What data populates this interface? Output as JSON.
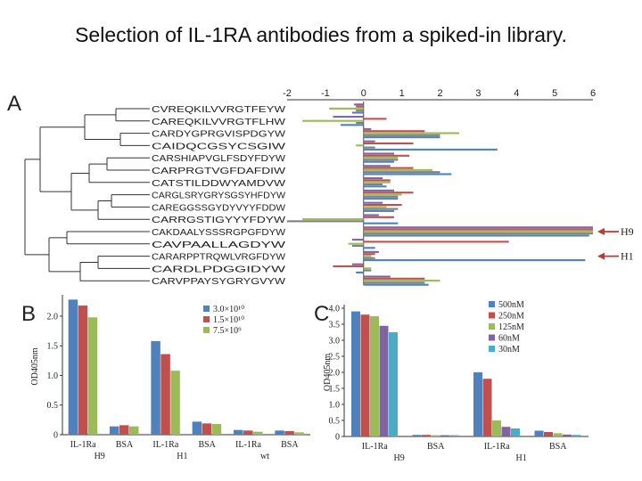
{
  "page_title": "Selection of IL-1RA antibodies from a spiked-in library.",
  "colors": {
    "blue": "#4f81bd",
    "red": "#c0504d",
    "green": "#9bbb59",
    "purple": "#8064a2",
    "teal": "#4bacc6",
    "grey": "#7f7f7f"
  },
  "chart_data": [
    {
      "panel": "A",
      "type": "bar",
      "orientation": "horizontal",
      "xlim": [
        -2,
        6
      ],
      "x_ticks": [
        "-2",
        "-1",
        "0",
        "1",
        "2",
        "3",
        "4",
        "5",
        "6"
      ],
      "sequences": [
        "CVREQKILVVRGTFEYW",
        "CAREQKILVVRGTFLHW",
        "CARDYGPRGVISPDGYW",
        "CAIDQCGSYCSGIW",
        "CARSHIAPVGLFSDYFDYW",
        "CARPRGTVGFDAFDIW",
        "CATSTILDDWYAMDVW",
        "CARGLSRYGRYSGSYHFDYW",
        "CAREGGSSGYDYVYYFDDW",
        "CARRGSTIGYYYFDYW",
        "CAKDAALYSSSRGPGFDYW",
        "CAVPAALLAGDYW",
        "CARARPPTRQWLVRGFDYW",
        "CARDLPDGGIDYW",
        "CARVPPAYSYGRYGVYW"
      ],
      "series": [
        {
          "color": "purple",
          "values": [
            -0.25,
            -0.8,
            0.2,
            0.3,
            0.8,
            0.7,
            0.5,
            0.8,
            0.5,
            0.4,
            6.0,
            -0.3,
            0.4,
            -0.3,
            0.7
          ]
        },
        {
          "color": "red",
          "values": [
            -0.2,
            0.6,
            1.6,
            1.3,
            1.2,
            1.3,
            0.7,
            1.3,
            1.0,
            0.8,
            6.0,
            3.8,
            0.3,
            -0.8,
            1.6
          ]
        },
        {
          "color": "green",
          "values": [
            -0.9,
            -1.6,
            2.5,
            -0.2,
            0.9,
            1.8,
            0.7,
            1.0,
            0.6,
            -1.6,
            6.0,
            -0.4,
            0.2,
            0.2,
            2.0
          ]
        },
        {
          "color": "grey",
          "values": [
            -0.2,
            -0.2,
            2.0,
            0.3,
            0.9,
            2.0,
            0.5,
            0.9,
            0.9,
            -2.0,
            6.0,
            -0.3,
            0.3,
            0.2,
            1.6
          ]
        },
        {
          "color": "blue",
          "values": [
            -0.3,
            -0.6,
            2.0,
            3.5,
            0.8,
            2.3,
            0.6,
            0.9,
            0.8,
            0.9,
            5.9,
            0.3,
            5.8,
            -0.2,
            1.7
          ]
        }
      ],
      "annotations": [
        {
          "label": "H9",
          "row": 10
        },
        {
          "label": "H1",
          "row": 12
        }
      ]
    },
    {
      "panel": "B",
      "type": "bar",
      "ylabel": "OD405nm",
      "ylim": [
        0,
        2.3
      ],
      "y_ticks": [
        "0",
        "0.5",
        "1.0",
        "1.5",
        "2.0"
      ],
      "categories": [
        "IL-1Ra",
        "BSA",
        "IL-1Ra",
        "BSA",
        "IL-1Ra",
        "BSA"
      ],
      "groups": [
        "H9",
        "H1",
        "wt"
      ],
      "series": [
        {
          "name": "3.0×10¹⁰",
          "color": "blue",
          "values": [
            2.28,
            0.14,
            1.58,
            0.22,
            0.08,
            0.07
          ]
        },
        {
          "name": "1.5×10¹⁰",
          "color": "red",
          "values": [
            2.18,
            0.16,
            1.36,
            0.19,
            0.07,
            0.06
          ]
        },
        {
          "name": "7.5×10⁹",
          "color": "green",
          "values": [
            1.98,
            0.14,
            1.08,
            0.18,
            0.05,
            0.04
          ]
        }
      ]
    },
    {
      "panel": "C",
      "type": "bar",
      "ylabel": "OD405nm",
      "ylim": [
        0,
        4.0
      ],
      "y_ticks": [
        "0",
        "0.5",
        "1.0",
        "1.5",
        "2.0",
        "2.5",
        "3.0",
        "3.5",
        "4.0"
      ],
      "categories": [
        "IL-1Ra",
        "BSA",
        "IL-1Ra",
        "BSA"
      ],
      "groups": [
        "H9",
        "H1"
      ],
      "series": [
        {
          "name": "500nM",
          "color": "blue",
          "values": [
            3.9,
            0.05,
            2.0,
            0.18
          ]
        },
        {
          "name": "250nM",
          "color": "red",
          "values": [
            3.8,
            0.05,
            1.8,
            0.14
          ]
        },
        {
          "name": "125nM",
          "color": "green",
          "values": [
            3.75,
            0.04,
            0.5,
            0.1
          ]
        },
        {
          "name": "60nM",
          "color": "purple",
          "values": [
            3.45,
            0.04,
            0.3,
            0.06
          ]
        },
        {
          "name": "30nM",
          "color": "teal",
          "values": [
            3.25,
            0.04,
            0.25,
            0.05
          ]
        }
      ]
    }
  ]
}
